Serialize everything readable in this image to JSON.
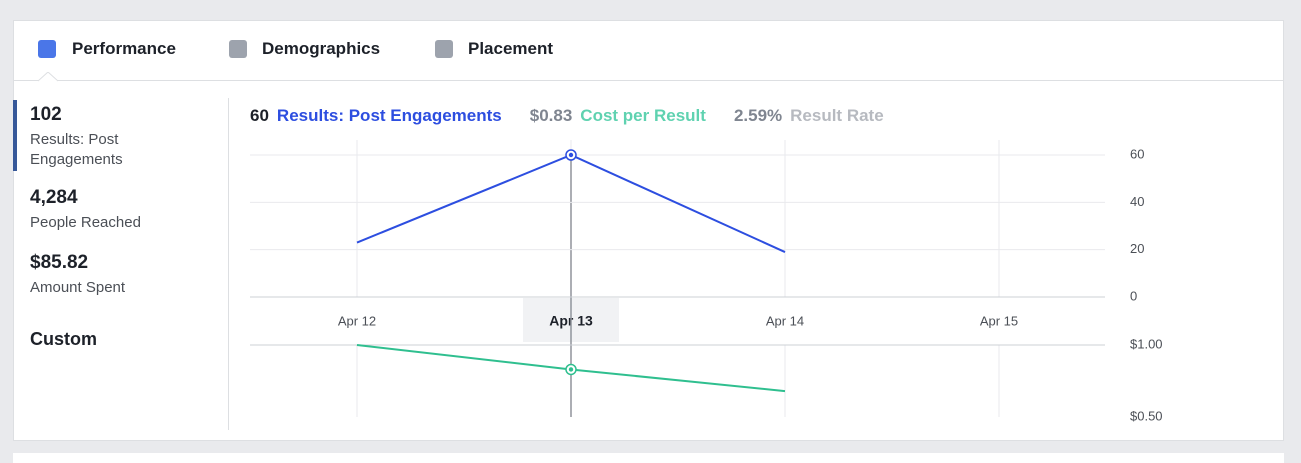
{
  "tabs": [
    "Performance",
    "Demographics",
    "Placement"
  ],
  "stats": [
    {
      "value": "102",
      "label": "Results: Post Engagements"
    },
    {
      "value": "4,284",
      "label": "People Reached"
    },
    {
      "value": "$85.82",
      "label": "Amount Spent"
    }
  ],
  "custom": "Custom",
  "summary": [
    {
      "value": "60",
      "label": "Results: Post Engagements",
      "color": "#2d4ee0"
    },
    {
      "value": "$0.83",
      "label": "Cost per Result",
      "color": "#5fd2b0"
    },
    {
      "value": "2.59%",
      "label": "Result Rate",
      "color": "#b7bac0"
    }
  ],
  "chart_data": [
    {
      "type": "line",
      "categories": [
        "Apr 12",
        "Apr 13",
        "Apr 14",
        "Apr 15"
      ],
      "values": [
        23,
        60,
        19,
        null
      ],
      "color": "#2d4ee0",
      "ylim": [
        0,
        60
      ],
      "yticks": [
        0,
        20,
        40,
        60
      ],
      "grid": true
    },
    {
      "type": "line",
      "values": [
        1.0,
        0.83,
        0.68,
        null
      ],
      "color": "#2fbf8f",
      "ylim": [
        0.5,
        1.0
      ],
      "yticks": [
        {
          "value": 0.5,
          "label": "$0.50"
        },
        {
          "value": 1.0,
          "label": "$1.00"
        }
      ],
      "grid": true
    }
  ]
}
